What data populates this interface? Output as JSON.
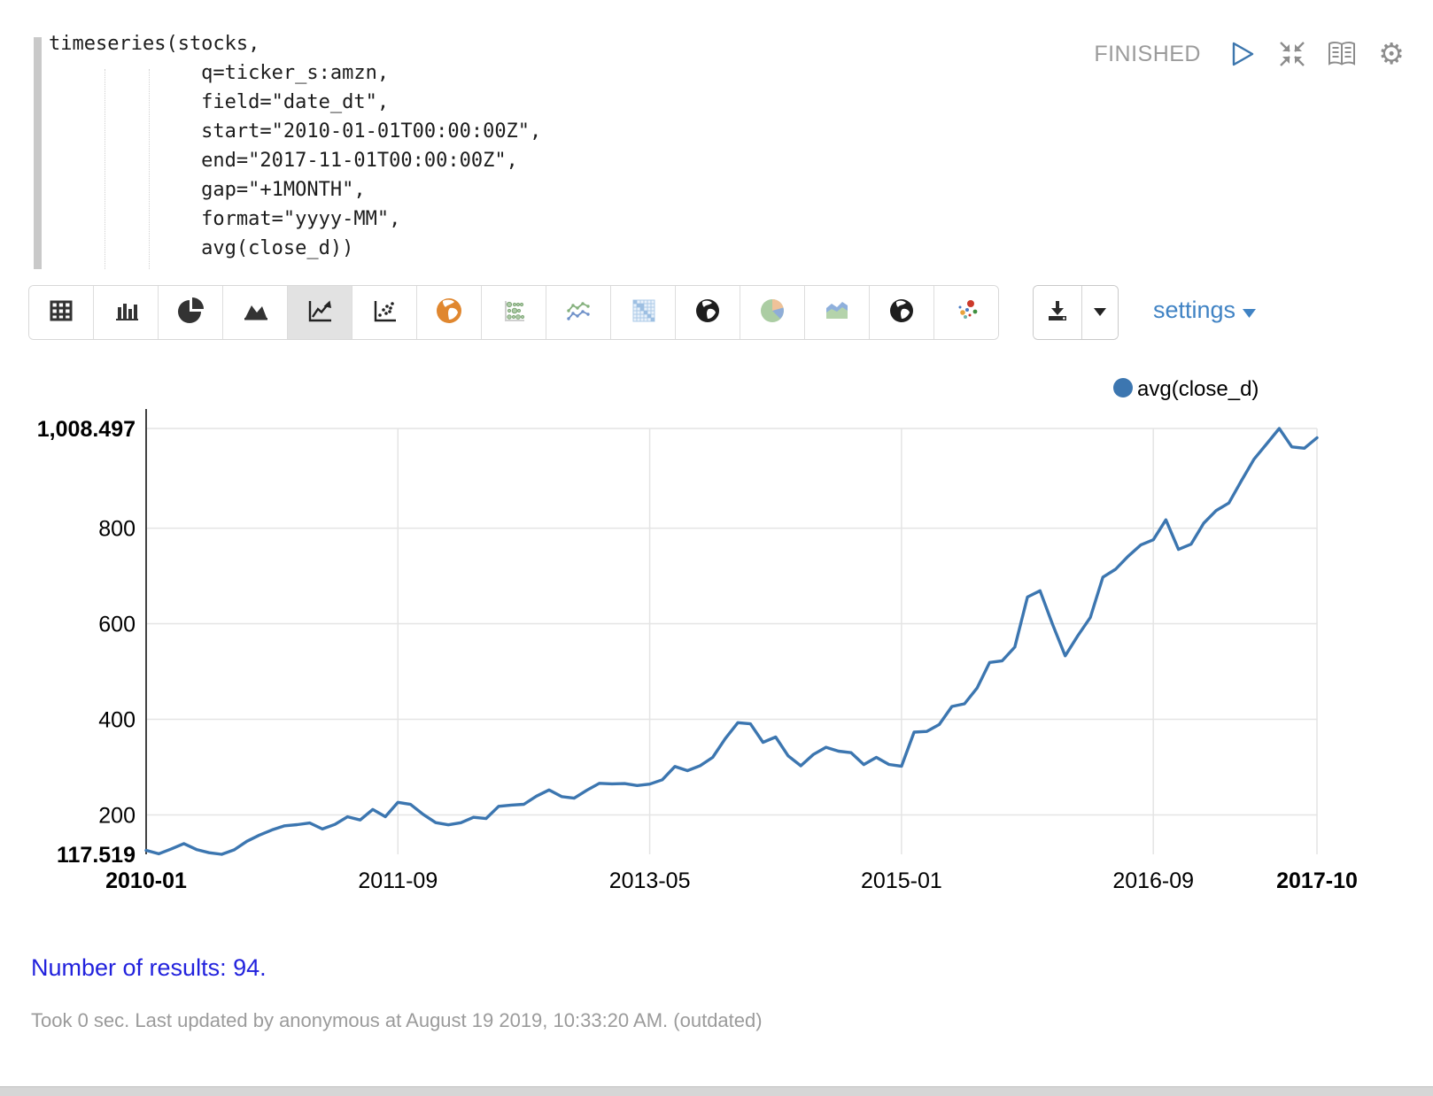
{
  "paragraph": {
    "status": "FINISHED",
    "code_lines": [
      "timeseries(stocks,",
      "             q=ticker_s:amzn,",
      "             field=\"date_dt\",",
      "             start=\"2010-01-01T00:00:00Z\",",
      "             end=\"2017-11-01T00:00:00Z\",",
      "             gap=\"+1MONTH\",",
      "             format=\"yyyy-MM\",",
      "             avg(close_d))"
    ]
  },
  "toolbar": {
    "settings_label": "settings",
    "selected_index": 4,
    "chart_buttons": [
      "table",
      "bar-chart",
      "pie-chart",
      "area-chart",
      "line-chart",
      "scatter-plot",
      "globe-orange",
      "bubble-chart",
      "line-with-points",
      "heatmap",
      "globe-black",
      "pie-pastel",
      "stacked-area",
      "globe-black-2",
      "colored-scatter"
    ]
  },
  "results": {
    "text": "Number of results: 94."
  },
  "footer": {
    "text": "Took 0 sec. Last updated by anonymous at August 19 2019, 10:33:20 AM. (outdated)"
  },
  "chart_data": {
    "type": "line",
    "title": "",
    "legend": "avg(close_d)",
    "line_color": "#3c76b0",
    "grid": true,
    "y_min": 117.519,
    "y_max": 1008.497,
    "y_min_label": "117.519",
    "y_max_label": "1,008.497",
    "y_ticks": [
      200,
      400,
      600,
      800
    ],
    "x_ticks": [
      {
        "index": 0,
        "label": "2010-01",
        "bold": true
      },
      {
        "index": 20,
        "label": "2011-09",
        "bold": false
      },
      {
        "index": 40,
        "label": "2013-05",
        "bold": false
      },
      {
        "index": 60,
        "label": "2015-01",
        "bold": false
      },
      {
        "index": 80,
        "label": "2016-09",
        "bold": false
      },
      {
        "index": 93,
        "label": "2017-10",
        "bold": true
      }
    ],
    "x": [
      "2010-01",
      "2010-02",
      "2010-03",
      "2010-04",
      "2010-05",
      "2010-06",
      "2010-07",
      "2010-08",
      "2010-09",
      "2010-10",
      "2010-11",
      "2010-12",
      "2011-01",
      "2011-02",
      "2011-03",
      "2011-04",
      "2011-05",
      "2011-06",
      "2011-07",
      "2011-08",
      "2011-09",
      "2011-10",
      "2011-11",
      "2011-12",
      "2012-01",
      "2012-02",
      "2012-03",
      "2012-04",
      "2012-05",
      "2012-06",
      "2012-07",
      "2012-08",
      "2012-09",
      "2012-10",
      "2012-11",
      "2012-12",
      "2013-01",
      "2013-02",
      "2013-03",
      "2013-04",
      "2013-05",
      "2013-06",
      "2013-07",
      "2013-08",
      "2013-09",
      "2013-10",
      "2013-11",
      "2013-12",
      "2014-01",
      "2014-02",
      "2014-03",
      "2014-04",
      "2014-05",
      "2014-06",
      "2014-07",
      "2014-08",
      "2014-09",
      "2014-10",
      "2014-11",
      "2014-12",
      "2015-01",
      "2015-02",
      "2015-03",
      "2015-04",
      "2015-05",
      "2015-06",
      "2015-07",
      "2015-08",
      "2015-09",
      "2015-10",
      "2015-11",
      "2015-12",
      "2016-01",
      "2016-02",
      "2016-03",
      "2016-04",
      "2016-05",
      "2016-06",
      "2016-07",
      "2016-08",
      "2016-09",
      "2016-10",
      "2016-11",
      "2016-12",
      "2017-01",
      "2017-02",
      "2017-03",
      "2017-04",
      "2017-05",
      "2017-06",
      "2017-07",
      "2017-08",
      "2017-09",
      "2017-10"
    ],
    "series": [
      {
        "name": "avg(close_d)",
        "values": [
          125.9,
          118.6,
          128.8,
          139.9,
          127.5,
          120.9,
          117.519,
          127.0,
          144.7,
          157.8,
          168.6,
          177.2,
          179.6,
          183.1,
          170.5,
          180.1,
          196.1,
          189.4,
          211.5,
          196.2,
          226.3,
          221.9,
          201.3,
          183.9,
          179.2,
          183.6,
          194.9,
          192.3,
          217.9,
          220.6,
          222.2,
          239.2,
          252.1,
          238.3,
          234.9,
          251.4,
          266.1,
          265.0,
          265.6,
          261.4,
          264.5,
          273.4,
          301.2,
          292.6,
          302.9,
          320.4,
          359.7,
          392.9,
          390.6,
          351.9,
          362.9,
          323.4,
          302.8,
          326.4,
          341.4,
          333.4,
          330.2,
          305.4,
          320.3,
          305.6,
          301.9,
          373.1,
          374.6,
          389.1,
          426.9,
          432.4,
          465.4,
          518.9,
          522.4,
          551.2,
          655.9,
          668.9,
          598.4,
          532.9,
          574.6,
          613.2,
          697.5,
          714.0,
          741.2,
          764.8,
          775.7,
          817.3,
          755.4,
          766.4,
          810.3,
          836.9,
          852.6,
          899.2,
          944.3,
          976.1,
          1008.497,
          969.9,
          967.2,
          989.1
        ]
      }
    ]
  }
}
